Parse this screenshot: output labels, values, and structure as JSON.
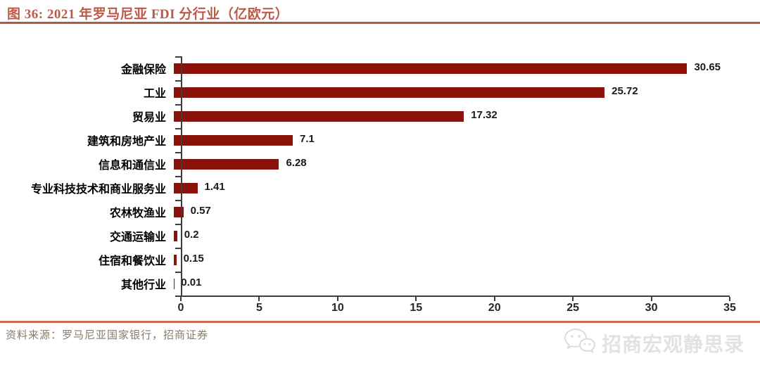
{
  "page": {
    "title": "图 36:  2021 年罗马尼亚 FDI 分行业（亿欧元）",
    "source": "资料来源：罗马尼亚国家银行，招商证券",
    "watermark": "招商宏观静思录"
  },
  "colors": {
    "bar": "#8b1209",
    "title": "#bd5947",
    "header_rule": "#c2604b",
    "footer_rule": "#c96a52",
    "axis": "#3d3d3d",
    "value_label": "#1a1a1a",
    "source_text": "#8a7a66",
    "watermark_text": "#e2e2e2"
  },
  "chart_data": {
    "type": "bar",
    "orientation": "horizontal",
    "title": "2021 年罗马尼亚 FDI 分行业（亿欧元）",
    "categories": [
      "金融保险",
      "工业",
      "贸易业",
      "建筑和房地产业",
      "信息和通信业",
      "专业科技技术和商业服务业",
      "农林牧渔业",
      "交通运输业",
      "住宿和餐饮业",
      "其他行业"
    ],
    "values": [
      30.65,
      25.72,
      17.32,
      7.1,
      6.28,
      1.41,
      0.57,
      0.2,
      0.15,
      0.01
    ],
    "value_labels": [
      "30.65",
      "25.72",
      "17.32",
      "7.1",
      "6.28",
      "1.41",
      "0.57",
      "0.2",
      "0.15",
      "0.01"
    ],
    "x_ticks": [
      0,
      5,
      10,
      15,
      20,
      25,
      30,
      35
    ],
    "xlim": [
      0,
      35
    ],
    "xlabel": "",
    "ylabel": "",
    "grid": false,
    "legend": null,
    "bar_color": "#8b1209"
  }
}
